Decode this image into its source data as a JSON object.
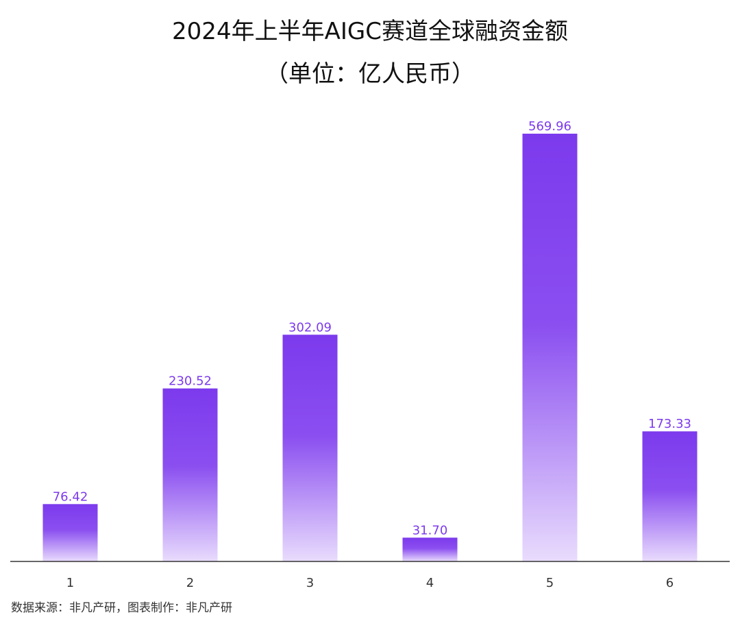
{
  "chart_data": {
    "type": "bar",
    "title": "2024年上半年AIGC赛道全球融资金额",
    "subtitle": "（单位：亿人民币）",
    "categories": [
      "1",
      "2",
      "3",
      "4",
      "5",
      "6"
    ],
    "values": [
      76.42,
      230.52,
      302.09,
      31.7,
      569.96,
      173.33
    ],
    "data_labels": [
      "76.42",
      "230.52",
      "302.09",
      "31.70",
      "569.96",
      "173.33"
    ],
    "xlabel": "",
    "ylabel": "",
    "ylim": [
      0,
      569.96
    ],
    "grid": false,
    "legend": "none"
  },
  "source": "数据来源：非凡产研，图表制作：非凡产研",
  "colors": {
    "bar_top": "#7c3aed",
    "bar_mid": "#8b4ff0",
    "bar_bottom": "#e9dcfd",
    "label": "#7c3aed",
    "axis": "#333333"
  }
}
